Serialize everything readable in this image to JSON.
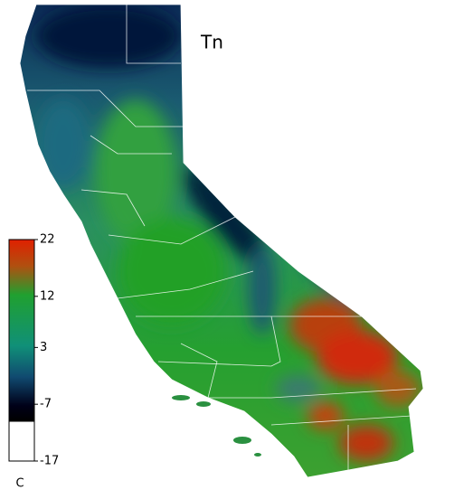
{
  "map": {
    "title": "Tn",
    "colorbar": {
      "range": [
        -17,
        22
      ],
      "ticks": [
        22,
        12,
        3,
        -7,
        -17
      ],
      "unit": "C"
    }
  }
}
